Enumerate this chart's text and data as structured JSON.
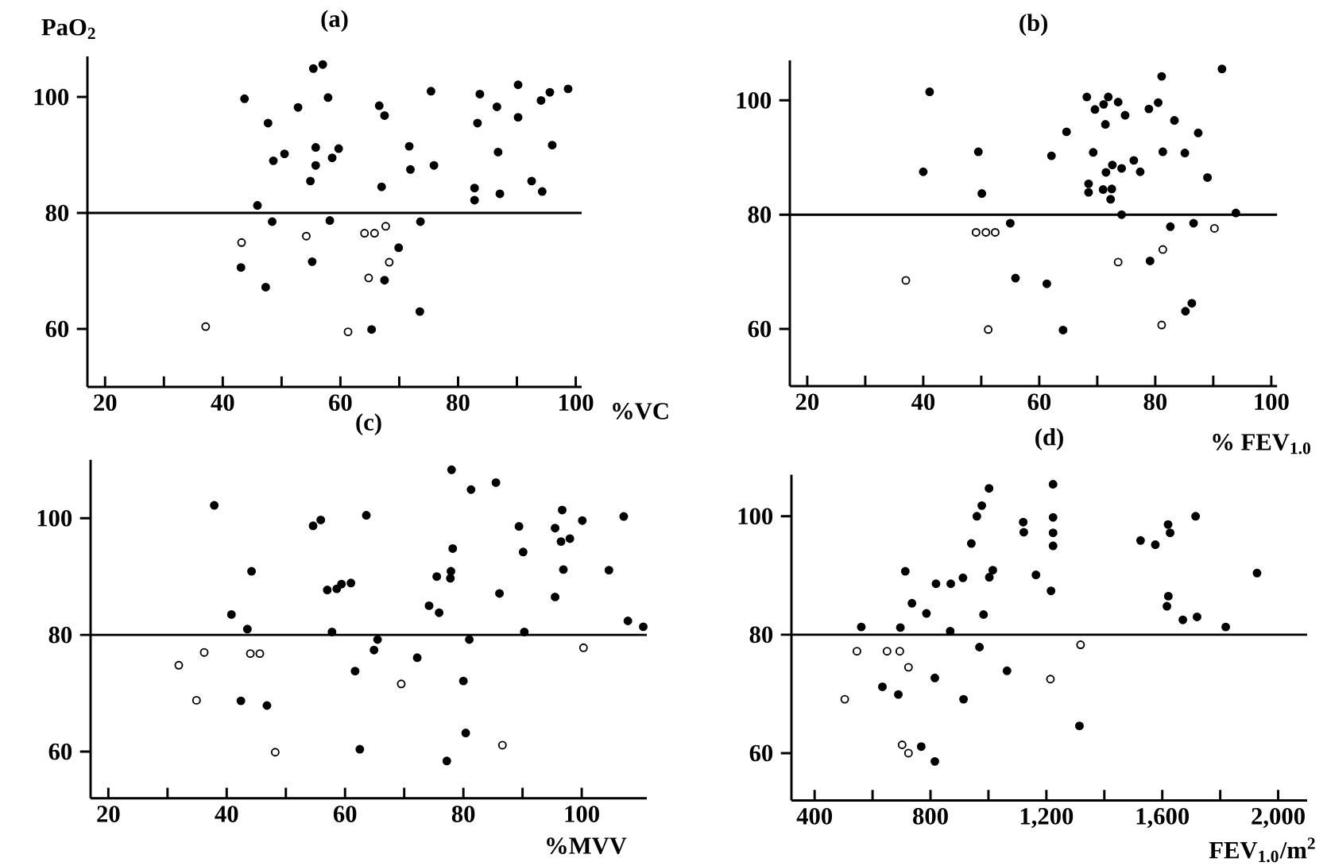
{
  "chart_data": [
    {
      "type": "scatter",
      "title": "(a)",
      "ylabel": "PaO$_{2}$",
      "xlabel": "%VC",
      "marker": "circle",
      "xlim": [
        17,
        101
      ],
      "ylim": [
        50,
        107
      ],
      "xticks": [
        20,
        {
          "value": 30,
          "label": null
        },
        40,
        {
          "value": 50,
          "label": null
        },
        60,
        {
          "value": 70,
          "label": null
        },
        80,
        {
          "value": 90,
          "label": null
        },
        100
      ],
      "yticks": [
        60,
        80,
        100
      ],
      "ref_lines": [
        {
          "axis": "y",
          "value": 80
        }
      ],
      "series": [
        {
          "color": "#000000",
          "x": [
            43.7,
            47.7,
            52.8,
            55.4,
            57.0,
            57.9,
            48.6,
            50.5,
            55.8,
            59.7,
            55.8,
            58.6,
            54.9,
            45.9,
            48.4,
            58.2,
            43.1,
            55.2,
            47.3,
            66.6,
            67.5,
            67.0,
            71.7,
            71.9,
            75.4,
            75.9,
            73.6,
            69.9,
            67.5,
            65.3,
            73.5,
            82.8,
            82.8,
            83.3,
            83.7,
            86.6,
            86.8,
            87.1,
            90.2,
            90.2,
            92.5,
            94.1,
            94.3,
            95.6,
            96.0,
            98.7
          ],
          "values": [
            99.7,
            95.5,
            98.2,
            104.9,
            105.6,
            99.9,
            89.0,
            90.2,
            91.3,
            91.1,
            88.2,
            89.5,
            85.5,
            81.3,
            78.5,
            78.7,
            70.6,
            71.6,
            67.2,
            98.5,
            96.8,
            84.5,
            91.5,
            87.5,
            101.0,
            88.2,
            78.5,
            74.0,
            68.4,
            59.9,
            63.0,
            84.3,
            82.2,
            95.5,
            100.5,
            98.3,
            90.5,
            83.3,
            102.1,
            96.5,
            85.5,
            99.4,
            83.7,
            100.8,
            91.7,
            101.4
          ]
        },
        {
          "color": "#ffffff",
          "x": [
            37.1,
            43.2,
            54.2,
            64.1,
            65.8,
            67.7,
            68.3,
            64.8,
            61.3
          ],
          "values": [
            60.4,
            74.9,
            76.0,
            76.5,
            76.5,
            77.7,
            71.5,
            68.8,
            59.5
          ]
        }
      ]
    },
    {
      "type": "scatter",
      "title": "(b)",
      "xlabel": "% FEV$_{1.0}$",
      "marker": "circle",
      "xlim": [
        17,
        101
      ],
      "ylim": [
        50,
        107
      ],
      "xticks": [
        20,
        {
          "value": 30,
          "label": null
        },
        40,
        {
          "value": 50,
          "label": null
        },
        60,
        {
          "value": 70,
          "label": null
        },
        80,
        {
          "value": 90,
          "label": null
        },
        100
      ],
      "yticks": [
        60,
        80,
        100
      ],
      "ref_lines": [
        {
          "axis": "y",
          "value": 80
        }
      ],
      "series": [
        {
          "color": "#000000",
          "x": [
            41.1,
            40.0,
            49.5,
            50.1,
            55.0,
            55.9,
            64.1,
            61.3,
            62.1,
            64.7,
            68.2,
            69.6,
            71.1,
            71.9,
            73.6,
            74.8,
            71.4,
            69.3,
            68.5,
            68.5,
            71.0,
            72.5,
            72.3,
            71.5,
            72.6,
            74.2,
            76.3,
            77.4,
            74.2,
            78.9,
            80.5,
            81.1,
            81.3,
            83.3,
            85.1,
            87.4,
            89.0,
            91.5,
            93.9,
            82.6,
            86.6,
            79.1,
            85.2,
            86.3
          ],
          "values": [
            101.5,
            87.5,
            91.0,
            83.7,
            78.5,
            68.9,
            59.8,
            67.9,
            90.3,
            94.5,
            100.6,
            98.4,
            99.3,
            100.6,
            99.7,
            97.4,
            95.8,
            90.9,
            85.4,
            83.9,
            84.4,
            84.5,
            82.7,
            87.4,
            88.7,
            88.1,
            89.5,
            87.5,
            80.0,
            98.5,
            99.6,
            104.2,
            91.0,
            96.5,
            90.8,
            94.3,
            86.5,
            105.5,
            80.3,
            77.9,
            78.5,
            71.9,
            63.1,
            64.5
          ]
        },
        {
          "color": "#ffffff",
          "x": [
            37.0,
            49.1,
            50.8,
            52.4,
            51.2,
            73.6,
            81.3,
            90.2,
            81.1
          ],
          "values": [
            68.5,
            76.9,
            76.9,
            76.9,
            59.9,
            71.7,
            73.9,
            77.6,
            60.7
          ]
        }
      ]
    },
    {
      "type": "scatter",
      "title": "(c)",
      "xlabel": "%MVV",
      "marker": "circle",
      "xlim": [
        17,
        111
      ],
      "ylim": [
        52,
        110
      ],
      "xticks": [
        20,
        {
          "value": 30,
          "label": null
        },
        40,
        {
          "value": 50,
          "label": null
        },
        60,
        {
          "value": 70,
          "label": null
        },
        80,
        {
          "value": 90,
          "label": null
        },
        100
      ],
      "yticks": [
        60,
        80,
        100
      ],
      "ref_lines": [
        {
          "axis": "y",
          "value": 80
        }
      ],
      "series": [
        {
          "color": "#000000",
          "x": [
            37.9,
            40.8,
            44.2,
            43.5,
            42.4,
            46.8,
            54.6,
            55.9,
            57.0,
            58.6,
            59.4,
            61.0,
            57.8,
            63.6,
            61.7,
            62.5,
            64.9,
            65.5,
            72.2,
            74.2,
            75.9,
            75.5,
            77.9,
            77.8,
            78.2,
            78.0,
            81.3,
            80.0,
            80.4,
            81.0,
            77.2,
            85.5,
            86.1,
            89.4,
            90.1,
            90.3,
            95.5,
            95.5,
            96.7,
            96.5,
            96.9,
            98.0,
            100.1,
            104.6,
            107.1,
            107.8,
            110.4
          ],
          "values": [
            102.2,
            83.5,
            90.9,
            81.0,
            68.7,
            67.9,
            98.7,
            99.7,
            87.7,
            87.9,
            88.7,
            88.9,
            80.5,
            100.5,
            73.8,
            60.4,
            77.4,
            79.2,
            76.1,
            85.0,
            83.8,
            90.0,
            90.9,
            89.7,
            94.8,
            108.3,
            104.9,
            72.1,
            63.2,
            79.2,
            58.4,
            106.1,
            87.1,
            98.6,
            94.2,
            80.5,
            98.3,
            86.5,
            101.4,
            96.0,
            91.2,
            96.5,
            99.6,
            91.1,
            100.3,
            82.4,
            81.4
          ]
        },
        {
          "color": "#ffffff",
          "x": [
            31.9,
            36.2,
            34.9,
            44.0,
            45.6,
            48.2,
            69.5,
            86.6,
            100.3
          ],
          "values": [
            74.8,
            77.0,
            68.8,
            76.8,
            76.8,
            59.9,
            71.6,
            61.1,
            77.8
          ]
        }
      ]
    },
    {
      "type": "scatter",
      "title": "(d)",
      "xlabel": "FEV$_{1.0}$/m$^{2}$",
      "marker": "circle",
      "xlim": [
        320,
        2100
      ],
      "ylim": [
        52,
        107
      ],
      "xticks": [
        400,
        {
          "value": 600,
          "label": null
        },
        800,
        {
          "value": 1000,
          "label": null
        },
        {
          "value": 1200,
          "label": "1,200"
        },
        {
          "value": 1400,
          "label": null
        },
        {
          "value": 1600,
          "label": "1,600"
        },
        {
          "value": 1800,
          "label": null
        },
        {
          "value": 2000,
          "label": "2,000"
        }
      ],
      "yticks": [
        60,
        80,
        100
      ],
      "ref_lines": [
        {
          "axis": "y",
          "value": 80
        }
      ],
      "series": [
        {
          "color": "#000000",
          "x": [
            561,
            634,
            713,
            696,
            689,
            736,
            786,
            768,
            815,
            815,
            819,
            870,
            868,
            912,
            914,
            941,
            960,
            977,
            1002,
            969,
            983,
            1003,
            1015,
            1064,
            1120,
            1122,
            1164,
            1223,
            1223,
            1223,
            1223,
            1216,
            1314,
            1525,
            1576,
            1620,
            1627,
            1621,
            1616,
            1671,
            1715,
            1720,
            1819,
            1927
          ],
          "values": [
            81.3,
            71.2,
            90.7,
            81.2,
            69.9,
            85.3,
            83.6,
            61.1,
            58.6,
            72.7,
            88.6,
            88.6,
            80.6,
            89.6,
            69.1,
            95.4,
            100.0,
            101.8,
            104.7,
            77.9,
            83.4,
            89.7,
            90.9,
            73.9,
            99.0,
            97.3,
            90.1,
            105.4,
            99.8,
            97.2,
            95.0,
            87.4,
            64.6,
            95.9,
            95.2,
            98.6,
            97.2,
            86.5,
            84.8,
            82.5,
            100.0,
            83.0,
            81.3,
            90.4
          ]
        },
        {
          "color": "#ffffff",
          "x": [
            504,
            546,
            650,
            694,
            724,
            702,
            724,
            1214,
            1318
          ],
          "values": [
            69.1,
            77.2,
            77.2,
            77.2,
            74.5,
            61.4,
            60.0,
            72.5,
            78.3
          ]
        }
      ]
    }
  ]
}
